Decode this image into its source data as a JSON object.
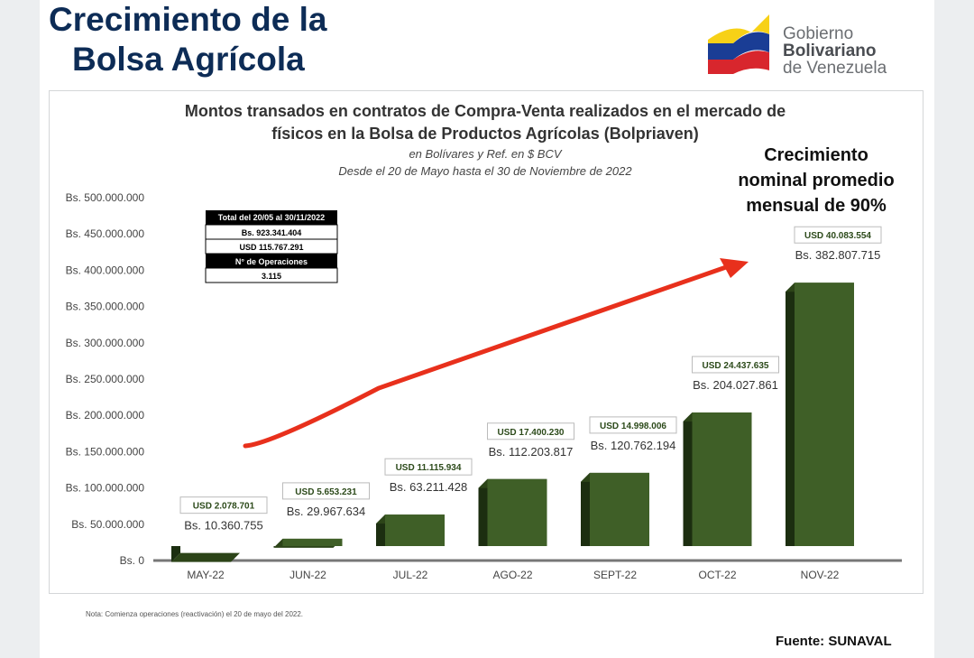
{
  "header": {
    "title_line1": "Crecimiento de la",
    "title_line2": "Bolsa Agrícola",
    "logo": {
      "line1": "Gobierno",
      "line2": "Bolivariano",
      "line3": "de Venezuela"
    }
  },
  "callout": {
    "line1": "Crecimiento",
    "line2": "nominal promedio",
    "line3": "mensual de 90%"
  },
  "summary_table": {
    "header": "Total del 20/05 al 30/11/2022",
    "bs": "Bs. 923.341.404",
    "usd": "USD 115.767.291",
    "ops_header": "N° de Operaciones",
    "ops": "3.115"
  },
  "footer": {
    "note": "Nota: Comienza operaciones (reactivación) el 20 de mayo del 2022.",
    "source": "Fuente: SUNAVAL"
  },
  "colors": {
    "bar": "#3f5f27",
    "bar_dark": "#1c2e10",
    "arrow": "#e8301c",
    "title": "#0d2c56"
  },
  "chart_data": {
    "type": "bar",
    "title": "Montos transados en contratos de Compra-Venta realizados en el mercado de",
    "title2": "físicos en la Bolsa de Productos Agrícolas (Bolpriaven)",
    "subtitle": "en Bolívares y Ref. en $ BCV",
    "subtitle2": "Desde el 20 de Mayo hasta el 30 de Noviembre de 2022",
    "xlabel": "",
    "ylabel": "",
    "ylim": [
      0,
      500000000
    ],
    "yticks": [
      "Bs. 0",
      "Bs. 50.000.000",
      "Bs. 100.000.000",
      "Bs. 150.000.000",
      "Bs. 200.000.000",
      "Bs. 250.000.000",
      "Bs. 300.000.000",
      "Bs. 350.000.000",
      "Bs. 400.000.000",
      "Bs. 450.000.000",
      "Bs. 500.000.000"
    ],
    "categories": [
      "MAY-22",
      "JUN-22",
      "JUL-22",
      "AGO-22",
      "SEPT-22",
      "OCT-22",
      "NOV-22"
    ],
    "values": [
      10360755,
      29967634,
      63211428,
      112203817,
      120762194,
      204027861,
      382807715
    ],
    "bs_labels": [
      "Bs. 10.360.755",
      "Bs. 29.967.634",
      "Bs. 63.211.428",
      "Bs. 112.203.817",
      "Bs. 120.762.194",
      "Bs. 204.027.861",
      "Bs. 382.807.715"
    ],
    "usd_labels": [
      "USD 2.078.701",
      "USD 5.653.231",
      "USD 11.115.934",
      "USD 17.400.230",
      "USD 14.998.006",
      "USD 24.437.635",
      "USD 40.083.554"
    ]
  }
}
